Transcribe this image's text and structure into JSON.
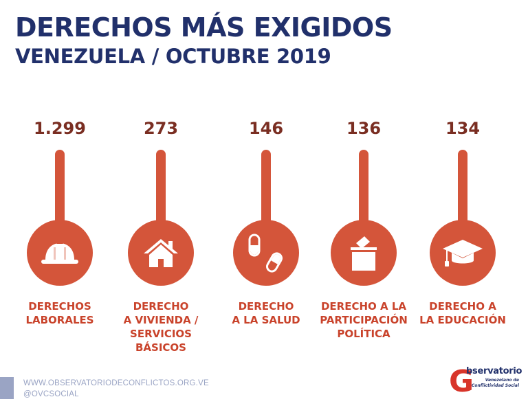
{
  "header": {
    "title": "DERECHOS MÁS EXIGIDOS",
    "subtitle": "VENEZUELA / OCTUBRE 2019"
  },
  "items": [
    {
      "value": "1.299",
      "icon": "hard-hat-icon",
      "label_lines": [
        "DERECHOS",
        "LABORALES"
      ]
    },
    {
      "value": "273",
      "icon": "house-icon",
      "label_lines": [
        "DERECHO",
        "A VIVIENDA /",
        "SERVICIOS",
        "BÁSICOS"
      ]
    },
    {
      "value": "146",
      "icon": "pills-icon",
      "label_lines": [
        "DERECHO",
        "A LA SALUD"
      ]
    },
    {
      "value": "136",
      "icon": "ballot-box-icon",
      "label_lines": [
        "DERECHO A LA",
        "PARTICIPACIÓN",
        "POLÍTICA"
      ]
    },
    {
      "value": "134",
      "icon": "graduation-cap-icon",
      "label_lines": [
        "DERECHO A",
        "LA EDUCACIÓN"
      ]
    }
  ],
  "footer": {
    "website": "WWW.OBSERVATORIODECONFLICTOS.ORG.VE",
    "social": "@OVCSOCIAL"
  },
  "logo": {
    "letter": "G",
    "name": "bservatorio",
    "sub_lines": [
      "Venezolano de",
      "Conflictividad Social"
    ]
  },
  "colors": {
    "title": "#21306b",
    "value": "#7a2e22",
    "accent": "#d4553a",
    "label": "#c9432b",
    "footer": "#9aa4c4",
    "logo_red": "#d8352a"
  }
}
